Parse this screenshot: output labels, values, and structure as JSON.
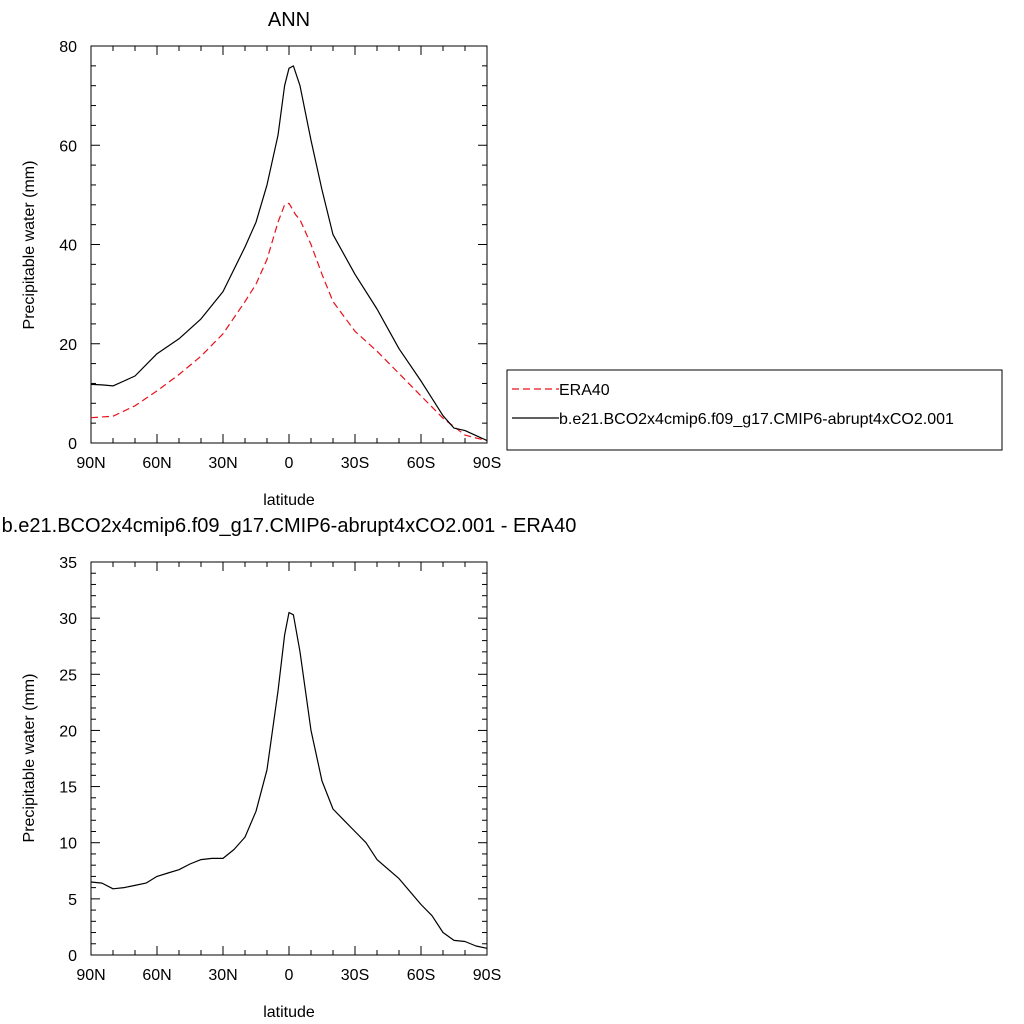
{
  "chart_data": [
    {
      "type": "line",
      "title": "ANN",
      "xlabel": "latitude",
      "ylabel": "Precipitable water (mm)",
      "xlim": [
        90,
        -90
      ],
      "ylim": [
        0,
        80
      ],
      "x_ticks": [
        90,
        60,
        30,
        0,
        -30,
        -60,
        -90
      ],
      "x_tick_labels": [
        "90N",
        "60N",
        "30N",
        "0",
        "30S",
        "60S",
        "90S"
      ],
      "y_ticks": [
        0,
        20,
        40,
        60,
        80
      ],
      "y_tick_labels": [
        "0",
        "20",
        "40",
        "60",
        "80"
      ],
      "legend_position": "right",
      "series": [
        {
          "name": "ERA40",
          "color": "#e8101a",
          "dash": "dashed",
          "x": [
            90,
            80,
            70,
            60,
            50,
            40,
            30,
            20,
            15,
            10,
            5,
            2,
            0,
            -3,
            -5,
            -10,
            -15,
            -20,
            -30,
            -40,
            -50,
            -60,
            -70,
            -80,
            -85,
            -90
          ],
          "y": [
            5.1,
            5.4,
            7.5,
            10.5,
            13.8,
            17.5,
            22.0,
            28.5,
            32.0,
            37.0,
            44.5,
            48.0,
            48.3,
            46.0,
            45.0,
            40.0,
            34.0,
            28.5,
            22.5,
            18.5,
            14.0,
            9.5,
            5.0,
            1.6,
            1.0,
            0.5
          ]
        },
        {
          "name": "b.e21.BCO2x4cmip6.f09_g17.CMIP6-abrupt4xCO2.001",
          "color": "#000000",
          "dash": "solid",
          "x": [
            90,
            85,
            80,
            75,
            70,
            60,
            50,
            40,
            30,
            20,
            15,
            10,
            5,
            2,
            0,
            -2,
            -5,
            -10,
            -15,
            -20,
            -30,
            -40,
            -50,
            -60,
            -65,
            -70,
            -75,
            -80,
            -85,
            -90
          ],
          "y": [
            11.8,
            11.7,
            11.5,
            12.5,
            13.5,
            18.0,
            21.0,
            25.0,
            30.5,
            39.5,
            44.5,
            52.0,
            62.0,
            72.0,
            75.5,
            76.0,
            72.0,
            61.0,
            51.0,
            42.0,
            34.0,
            27.0,
            19.0,
            12.5,
            9.0,
            5.5,
            3.0,
            2.5,
            1.5,
            0.5
          ]
        }
      ]
    },
    {
      "type": "line",
      "title": "b.e21.BCO2x4cmip6.f09_g17.CMIP6-abrupt4xCO2.001 - ERA40",
      "xlabel": "latitude",
      "ylabel": "Precipitable water (mm)",
      "xlim": [
        90,
        -90
      ],
      "ylim": [
        0,
        35
      ],
      "x_ticks": [
        90,
        60,
        30,
        0,
        -30,
        -60,
        -90
      ],
      "x_tick_labels": [
        "90N",
        "60N",
        "30N",
        "0",
        "30S",
        "60S",
        "90S"
      ],
      "y_ticks": [
        0,
        5,
        10,
        15,
        20,
        25,
        30,
        35
      ],
      "y_tick_labels": [
        "0",
        "5",
        "10",
        "15",
        "20",
        "25",
        "30",
        "35"
      ],
      "series": [
        {
          "color": "#000000",
          "dash": "solid",
          "x": [
            90,
            85,
            80,
            75,
            70,
            65,
            60,
            55,
            50,
            45,
            40,
            35,
            30,
            25,
            20,
            15,
            10,
            5,
            2,
            0,
            -2,
            -5,
            -10,
            -15,
            -20,
            -25,
            -30,
            -35,
            -40,
            -50,
            -60,
            -65,
            -70,
            -75,
            -80,
            -85,
            -90
          ],
          "y": [
            6.5,
            6.4,
            5.9,
            6.0,
            6.2,
            6.4,
            7.0,
            7.3,
            7.6,
            8.1,
            8.5,
            8.6,
            8.6,
            9.4,
            10.5,
            12.8,
            16.5,
            23.5,
            28.5,
            30.5,
            30.3,
            27.0,
            20.0,
            15.5,
            13.0,
            12.0,
            11.0,
            10.0,
            8.5,
            6.8,
            4.5,
            3.5,
            2.0,
            1.3,
            1.2,
            0.8,
            0.6
          ]
        }
      ]
    }
  ]
}
